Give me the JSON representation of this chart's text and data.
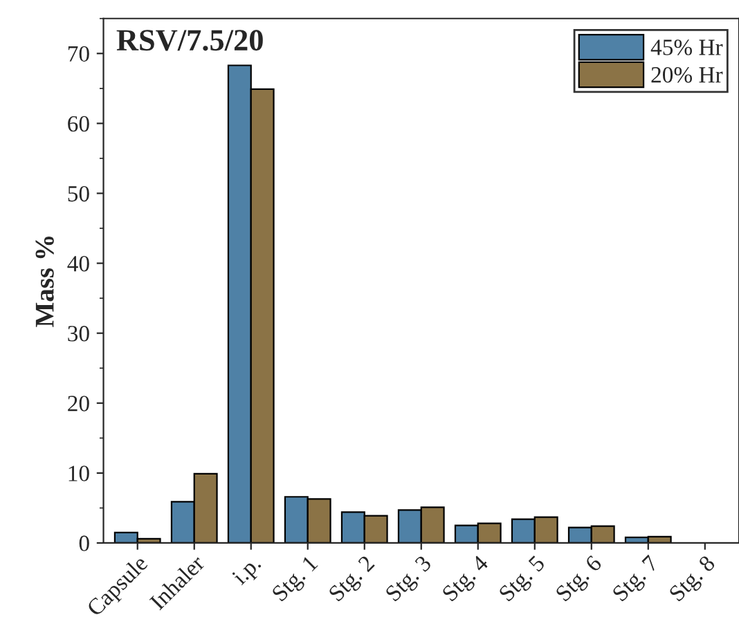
{
  "chart_data": {
    "type": "bar",
    "title": "RSV/7.5/20",
    "ylabel": "Mass %",
    "categories": [
      "Capsule",
      "Inhaler",
      "i.p.",
      "Stg. 1",
      "Stg. 2",
      "Stg. 3",
      "Stg. 4",
      "Stg. 5",
      "Stg. 6",
      "Stg. 7",
      "Stg. 8"
    ],
    "series": [
      {
        "name": "45% Hr",
        "color": "#4f81a6",
        "values": [
          1.5,
          5.9,
          68.3,
          6.6,
          4.4,
          4.7,
          2.5,
          3.4,
          2.2,
          0.8,
          null
        ]
      },
      {
        "name": "20% Hr",
        "color": "#8b7346",
        "values": [
          0.6,
          9.9,
          64.9,
          6.3,
          3.9,
          5.1,
          2.8,
          3.7,
          2.4,
          0.9,
          null
        ]
      }
    ],
    "ylim": [
      0,
      75
    ],
    "yticks": [
      0,
      10,
      20,
      30,
      40,
      50,
      60,
      70
    ],
    "grid": false,
    "legend": "top right"
  }
}
